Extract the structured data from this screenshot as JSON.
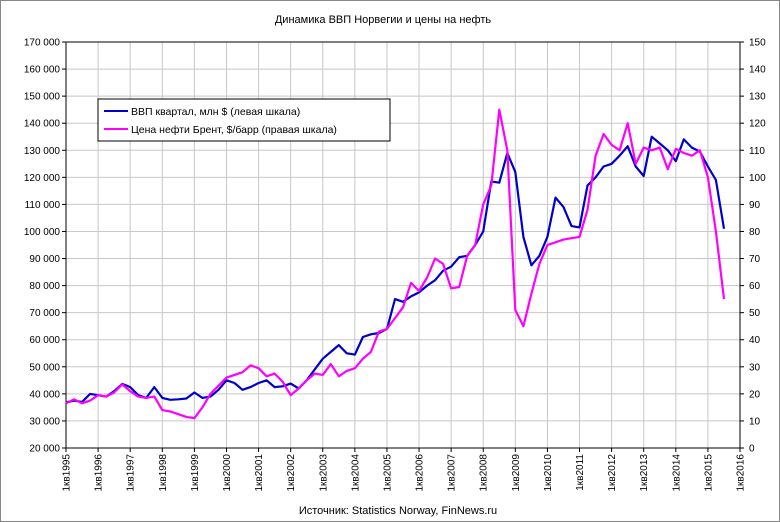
{
  "chart_data": {
    "type": "line",
    "title": "Динамика ВВП Норвегии и цены на нефть",
    "source": "Источник: Statistics Norway, FinNews.ru",
    "xlim": [
      1995,
      2016
    ],
    "x_ticks": [
      "1кв1995",
      "1кв1996",
      "1кв1997",
      "1кв1998",
      "1кв1999",
      "1кв2000",
      "1кв2001",
      "1кв2002",
      "1кв2003",
      "1кв2004",
      "1кв2005",
      "1кв2006",
      "1кв2007",
      "1кв2008",
      "1кв2009",
      "1кв2010",
      "1кв2011",
      "1кв2012",
      "1кв2013",
      "1кв2014",
      "1кв2015",
      "1кв2016"
    ],
    "y_left": {
      "min": 20000,
      "max": 170000,
      "step": 10000,
      "tick_labels": [
        "20 000",
        "30 000",
        "40 000",
        "50 000",
        "60 000",
        "70 000",
        "80 000",
        "90 000",
        "100 000",
        "110 000",
        "120 000",
        "130 000",
        "140 000",
        "150 000",
        "160 000",
        "170 000"
      ]
    },
    "y_right": {
      "min": 0,
      "max": 150,
      "step": 10,
      "tick_labels": [
        "0",
        "10",
        "20",
        "30",
        "40",
        "50",
        "60",
        "70",
        "80",
        "90",
        "100",
        "110",
        "120",
        "130",
        "140",
        "150"
      ]
    },
    "grid": true,
    "legend": "top-left",
    "series": [
      {
        "name": "ВВП квартал, млн $ (левая шкала)",
        "axis": "left",
        "color": "#0000cc",
        "points": [
          [
            1995.0,
            36800
          ],
          [
            1995.25,
            37500
          ],
          [
            1995.5,
            37000
          ],
          [
            1995.75,
            40000
          ],
          [
            1996.0,
            39500
          ],
          [
            1996.25,
            39000
          ],
          [
            1996.5,
            41000
          ],
          [
            1996.75,
            43700
          ],
          [
            1997.0,
            42500
          ],
          [
            1997.25,
            39500
          ],
          [
            1997.5,
            38500
          ],
          [
            1997.75,
            42500
          ],
          [
            1998.0,
            38500
          ],
          [
            1998.25,
            37800
          ],
          [
            1998.5,
            38000
          ],
          [
            1998.75,
            38300
          ],
          [
            1999.0,
            40500
          ],
          [
            1999.25,
            38500
          ],
          [
            1999.5,
            39000
          ],
          [
            1999.75,
            41500
          ],
          [
            2000.0,
            45000
          ],
          [
            2000.25,
            44000
          ],
          [
            2000.5,
            41500
          ],
          [
            2000.75,
            42500
          ],
          [
            2001.0,
            44000
          ],
          [
            2001.25,
            45000
          ],
          [
            2001.5,
            42500
          ],
          [
            2001.75,
            42800
          ],
          [
            2002.0,
            43800
          ],
          [
            2002.25,
            42000
          ],
          [
            2002.5,
            45000
          ],
          [
            2002.75,
            49000
          ],
          [
            2003.0,
            53000
          ],
          [
            2003.25,
            55500
          ],
          [
            2003.5,
            58000
          ],
          [
            2003.75,
            55000
          ],
          [
            2004.0,
            54500
          ],
          [
            2004.25,
            61000
          ],
          [
            2004.5,
            62000
          ],
          [
            2004.75,
            62500
          ],
          [
            2005.0,
            64000
          ],
          [
            2005.25,
            75000
          ],
          [
            2005.5,
            74000
          ],
          [
            2005.75,
            76000
          ],
          [
            2006.0,
            77500
          ],
          [
            2006.25,
            80000
          ],
          [
            2006.5,
            82000
          ],
          [
            2006.75,
            85500
          ],
          [
            2007.0,
            87000
          ],
          [
            2007.25,
            90500
          ],
          [
            2007.5,
            91000
          ],
          [
            2007.75,
            95000
          ],
          [
            2008.0,
            100000
          ],
          [
            2008.25,
            118500
          ],
          [
            2008.5,
            118000
          ],
          [
            2008.75,
            129000
          ],
          [
            2009.0,
            122000
          ],
          [
            2009.25,
            98000
          ],
          [
            2009.5,
            87500
          ],
          [
            2009.75,
            91000
          ],
          [
            2010.0,
            98000
          ],
          [
            2010.25,
            112500
          ],
          [
            2010.5,
            109000
          ],
          [
            2010.75,
            102000
          ],
          [
            2011.0,
            101500
          ],
          [
            2011.25,
            117000
          ],
          [
            2011.5,
            120000
          ],
          [
            2011.75,
            124000
          ],
          [
            2012.0,
            125000
          ],
          [
            2012.25,
            128000
          ],
          [
            2012.5,
            131500
          ],
          [
            2012.75,
            124000
          ],
          [
            2013.0,
            120500
          ],
          [
            2013.25,
            135000
          ],
          [
            2013.5,
            132500
          ],
          [
            2013.75,
            130000
          ],
          [
            2014.0,
            126000
          ],
          [
            2014.25,
            134000
          ],
          [
            2014.5,
            131000
          ],
          [
            2014.75,
            129500
          ],
          [
            2015.0,
            124000
          ],
          [
            2015.25,
            119000
          ],
          [
            2015.5,
            101000
          ]
        ]
      },
      {
        "name": "Цена нефти Брент, $/барр (правая шкала)",
        "axis": "right",
        "color": "#ff00ff",
        "points": [
          [
            1995.0,
            16.5
          ],
          [
            1995.25,
            18
          ],
          [
            1995.5,
            16.5
          ],
          [
            1995.75,
            17.5
          ],
          [
            1996.0,
            19.5
          ],
          [
            1996.25,
            19
          ],
          [
            1996.5,
            20.5
          ],
          [
            1996.75,
            23.5
          ],
          [
            1997.0,
            21
          ],
          [
            1997.25,
            19
          ],
          [
            1997.5,
            18.5
          ],
          [
            1997.75,
            19
          ],
          [
            1998.0,
            14
          ],
          [
            1998.25,
            13.5
          ],
          [
            1998.5,
            12.5
          ],
          [
            1998.75,
            11.5
          ],
          [
            1999.0,
            11
          ],
          [
            1999.25,
            15
          ],
          [
            1999.5,
            20
          ],
          [
            1999.75,
            23
          ],
          [
            2000.0,
            26
          ],
          [
            2000.25,
            27
          ],
          [
            2000.5,
            28
          ],
          [
            2000.75,
            30.5
          ],
          [
            2001.0,
            29.5
          ],
          [
            2001.25,
            26.5
          ],
          [
            2001.5,
            27.5
          ],
          [
            2001.75,
            24.5
          ],
          [
            2002.0,
            19.5
          ],
          [
            2002.25,
            22
          ],
          [
            2002.5,
            25
          ],
          [
            2002.75,
            27.5
          ],
          [
            2003.0,
            27
          ],
          [
            2003.25,
            31
          ],
          [
            2003.5,
            26.5
          ],
          [
            2003.75,
            28.5
          ],
          [
            2004.0,
            29.5
          ],
          [
            2004.25,
            33
          ],
          [
            2004.5,
            35.5
          ],
          [
            2004.75,
            43
          ],
          [
            2005.0,
            44
          ],
          [
            2005.25,
            48
          ],
          [
            2005.5,
            52
          ],
          [
            2005.75,
            61
          ],
          [
            2006.0,
            58
          ],
          [
            2006.25,
            63
          ],
          [
            2006.5,
            70
          ],
          [
            2006.75,
            68
          ],
          [
            2007.0,
            59
          ],
          [
            2007.25,
            59.5
          ],
          [
            2007.5,
            71
          ],
          [
            2007.75,
            75
          ],
          [
            2008.0,
            90
          ],
          [
            2008.25,
            97
          ],
          [
            2008.5,
            125
          ],
          [
            2008.75,
            110
          ],
          [
            2009.0,
            51
          ],
          [
            2009.25,
            45
          ],
          [
            2009.5,
            57
          ],
          [
            2009.75,
            68
          ],
          [
            2010.0,
            75
          ],
          [
            2010.25,
            76
          ],
          [
            2010.5,
            77
          ],
          [
            2010.75,
            77.5
          ],
          [
            2011.0,
            78
          ],
          [
            2011.25,
            88
          ],
          [
            2011.5,
            108
          ],
          [
            2011.75,
            116
          ],
          [
            2012.0,
            112
          ],
          [
            2012.25,
            110
          ],
          [
            2012.5,
            120
          ],
          [
            2012.75,
            105
          ],
          [
            2013.0,
            111
          ],
          [
            2013.25,
            110
          ],
          [
            2013.5,
            111
          ],
          [
            2013.75,
            103
          ],
          [
            2014.0,
            110.5
          ],
          [
            2014.25,
            109
          ],
          [
            2014.5,
            108
          ],
          [
            2014.75,
            110
          ],
          [
            2015.0,
            100
          ],
          [
            2015.25,
            80
          ],
          [
            2015.5,
            55
          ]
        ]
      }
    ]
  }
}
